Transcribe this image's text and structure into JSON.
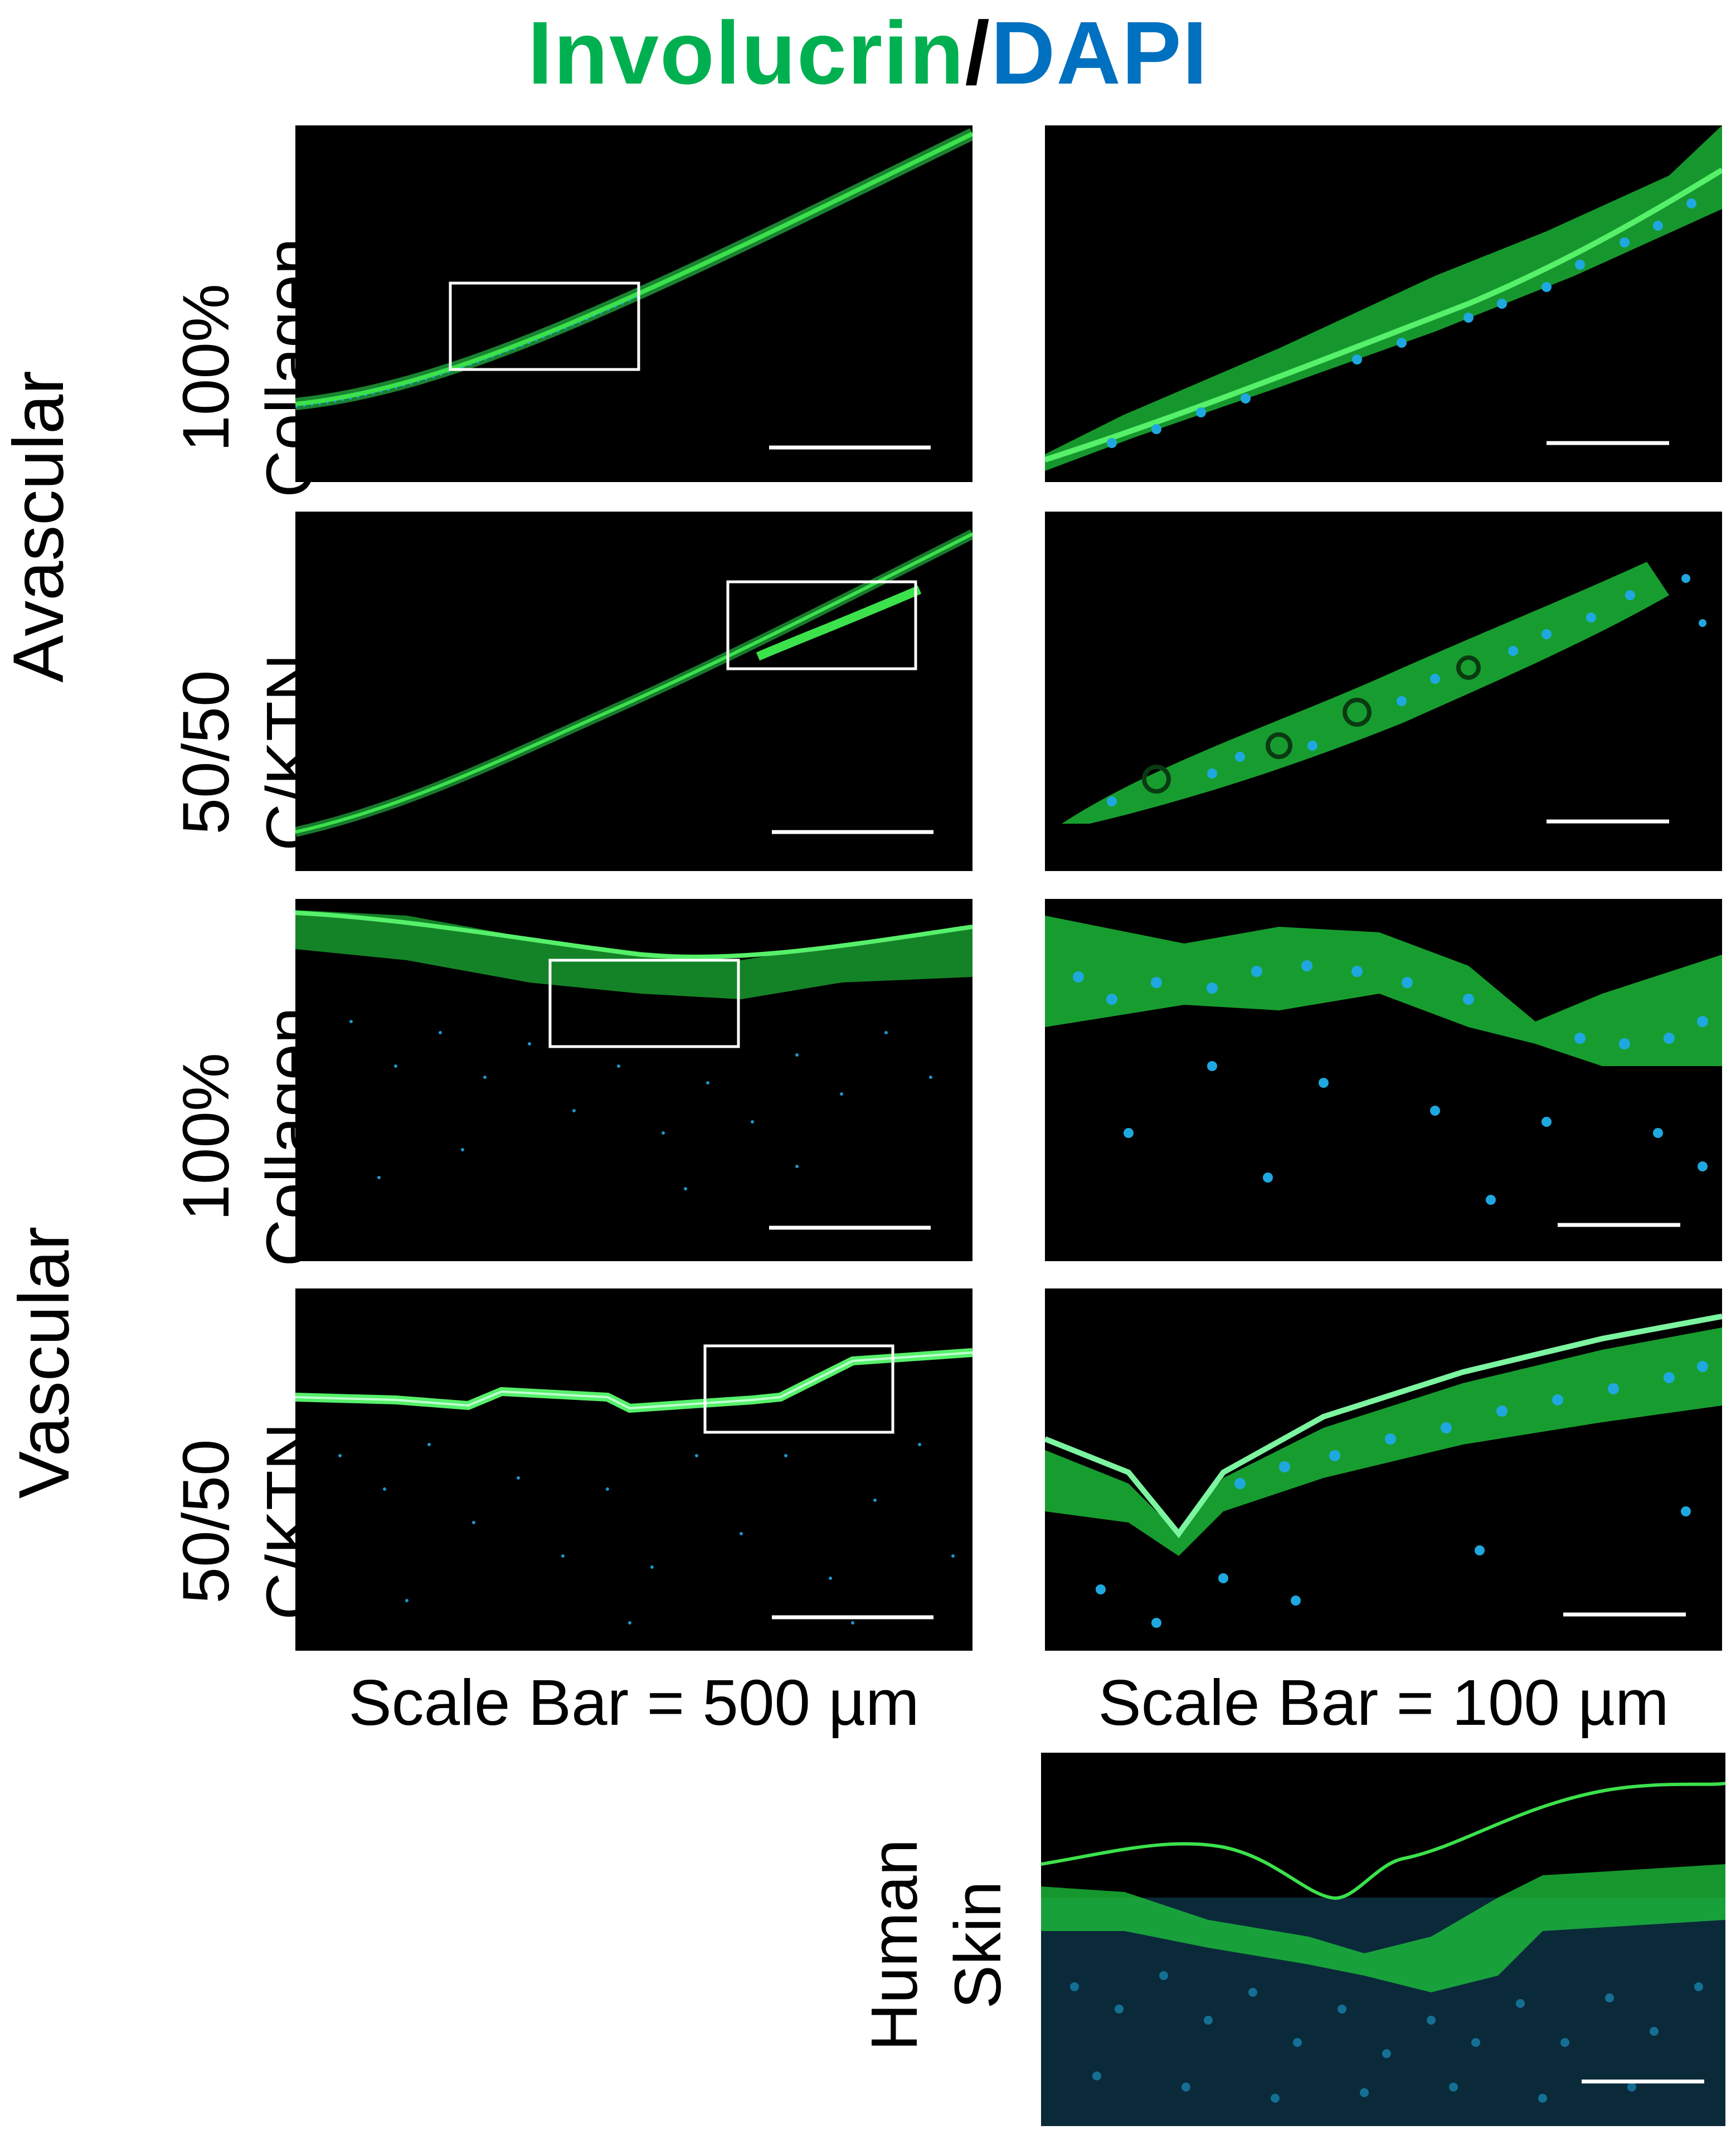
{
  "title": {
    "green": "Involucrin",
    "slash": "/",
    "blue": "DAPI",
    "green_color": "#00b050",
    "slash_color": "#000000",
    "blue_color": "#0070c0"
  },
  "groups": {
    "avascular": "Avascular",
    "vascular": "Vascular"
  },
  "rows": [
    {
      "line1": "100%",
      "line2": "Collagen"
    },
    {
      "line1": "50/50",
      "line2": "C/KTN"
    },
    {
      "line1": "100%",
      "line2": "Collagen"
    },
    {
      "line1": "50/50",
      "line2": "C/KTN"
    }
  ],
  "captions": {
    "left": "Scale Bar = 500 µm",
    "right": "Scale Bar = 100 µm"
  },
  "human_skin": {
    "line1": "Human",
    "line2": "Skin"
  },
  "colors": {
    "involucrin": "#2bd93a",
    "dapi": "#1fa8e0",
    "background": "#000000",
    "scale_bar": "#ffffff"
  }
}
